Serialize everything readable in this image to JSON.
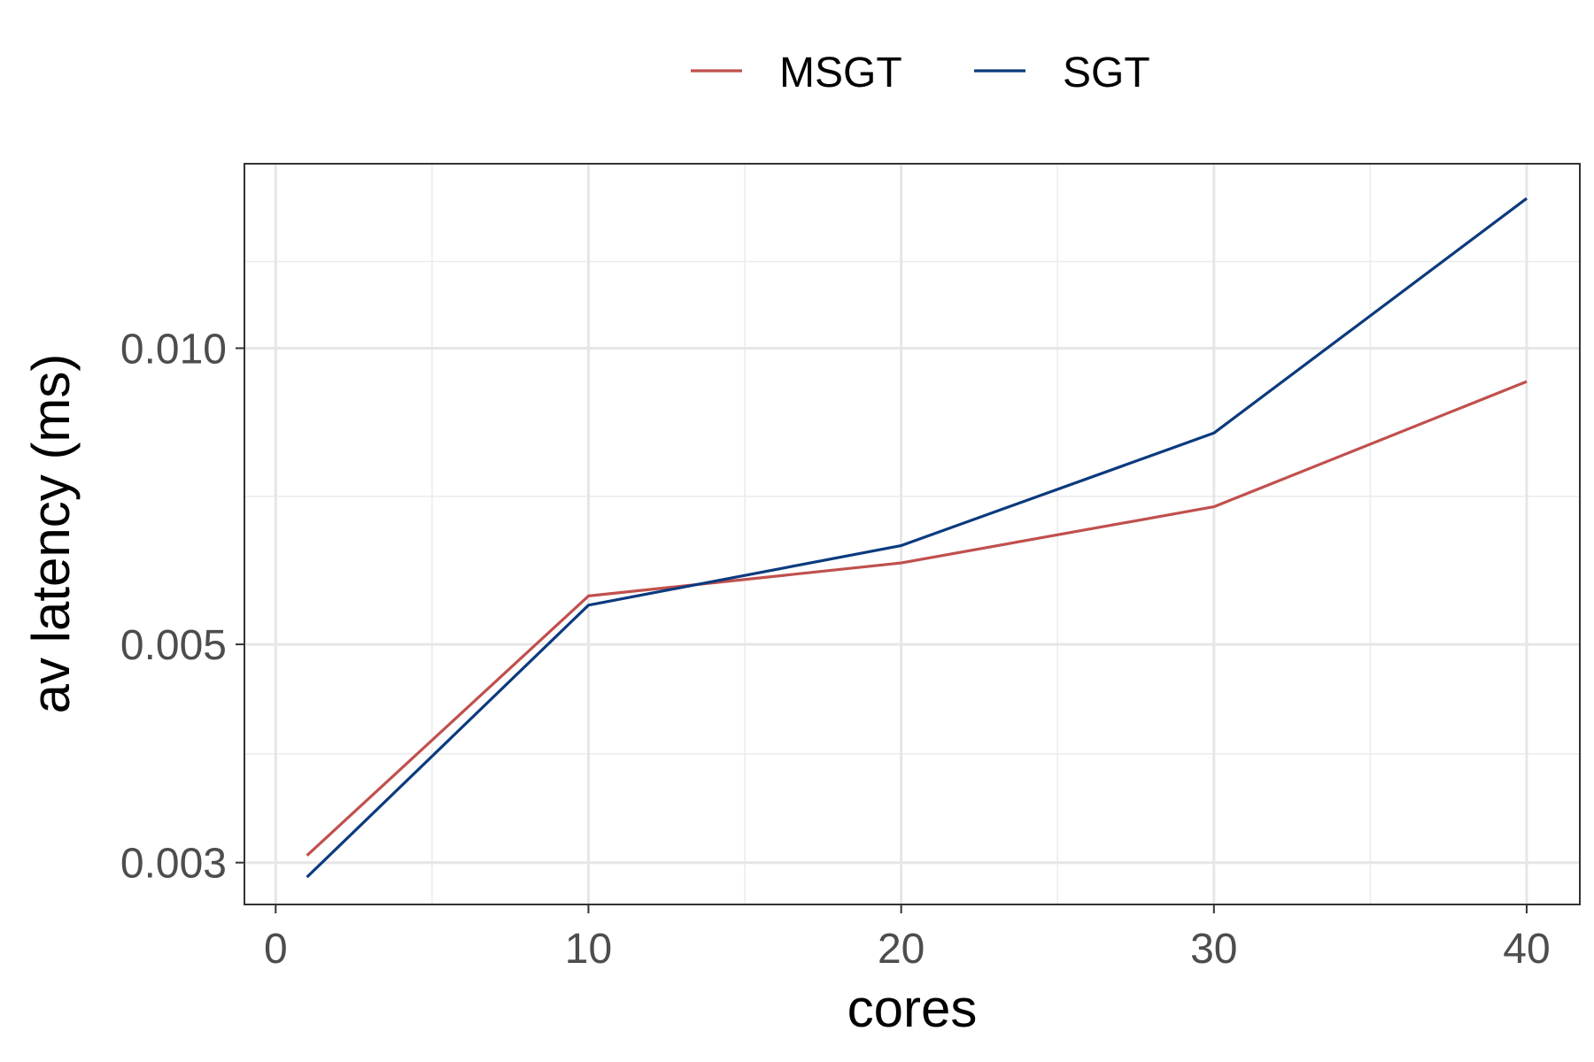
{
  "chart_data": {
    "type": "line",
    "xlabel": "cores",
    "ylabel": "av latency (ms)",
    "x": [
      1,
      10,
      20,
      30,
      40
    ],
    "series": [
      {
        "name": "MSGT",
        "color": "#c0504d",
        "values": [
          0.00305,
          0.0056,
          0.00605,
          0.0069,
          0.00925
        ]
      },
      {
        "name": "SGT",
        "color": "#0b3a7e",
        "values": [
          0.0029,
          0.00548,
          0.0063,
          0.0082,
          0.0142
        ]
      }
    ],
    "xlim": [
      -1,
      41.7
    ],
    "ylim": [
      0.00272,
      0.0154
    ],
    "yscale": "log",
    "x_ticks": [
      0,
      10,
      20,
      30,
      40
    ],
    "x_tick_labels": [
      "0",
      "10",
      "20",
      "30",
      "40"
    ],
    "y_ticks": [
      0.003,
      0.005,
      0.01
    ],
    "y_tick_labels": [
      "0.003",
      "0.005",
      "0.010"
    ],
    "y_minor_ticks": [
      0.00387,
      0.00707,
      0.01225
    ],
    "x_minor_ticks": [
      5,
      15,
      25,
      35
    ],
    "grid": true,
    "legend_position": "top"
  }
}
